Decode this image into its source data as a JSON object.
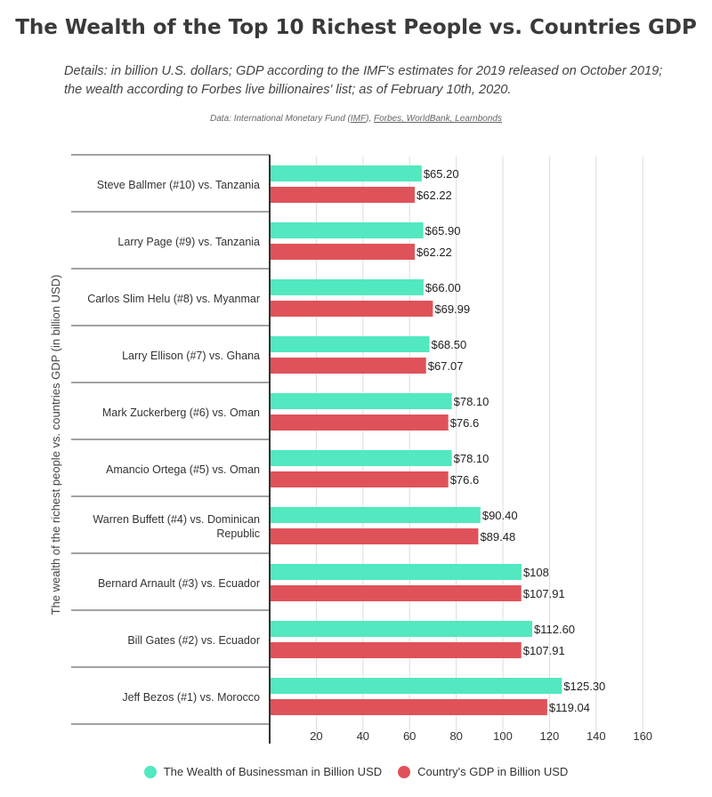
{
  "header": {
    "title": "The Wealth of the Top 10 Richest People vs. Countries GDP",
    "subtitle": "Details: in billion U.S. dollars; GDP according to the IMF's estimates for 2019 released on October 2019; the wealth according to Forbes live billionaires' list; as of February 10th, 2020.",
    "source_prefix": "Data: International Monetary Fund (",
    "source_imf": "IMF",
    "source_mid": "), ",
    "source_links": "Forbes, WorldBank, Learnbonds"
  },
  "colors": {
    "wealth": "#52e8c0",
    "gdp": "#e0525a",
    "axis": "#333333",
    "grid": "#dddddd"
  },
  "chart_data": {
    "type": "bar",
    "orientation": "horizontal",
    "ylabel": "The wealth of the richest people vs. countries GDP (in billion USD)",
    "xlim": [
      0,
      165
    ],
    "xticks": [
      20,
      40,
      60,
      80,
      100,
      120,
      140,
      160
    ],
    "grid": true,
    "legend_position": "bottom",
    "categories": [
      [
        "Steve Ballmer (#10) vs. Tanzania"
      ],
      [
        "Larry Page (#9) vs. Tanzania"
      ],
      [
        "Carlos Slim Helu (#8) vs. Myanmar"
      ],
      [
        "Larry Ellison (#7) vs. Ghana"
      ],
      [
        "Mark Zuckerberg (#6) vs. Oman"
      ],
      [
        "Amancio Ortega (#5) vs. Oman"
      ],
      [
        "Warren Buffett (#4) vs. Dominican",
        "Republic"
      ],
      [
        "Bernard Arnault (#3) vs. Ecuador"
      ],
      [
        "Bill Gates (#2) vs. Ecuador"
      ],
      [
        "Jeff Bezos (#1) vs. Morocco"
      ]
    ],
    "series": [
      {
        "name": "The Wealth of Businessman in Billion USD",
        "values": [
          65.2,
          65.9,
          66.0,
          68.5,
          78.1,
          78.1,
          90.4,
          108,
          112.6,
          125.3
        ],
        "labels": [
          "$65.20",
          "$65.90",
          "$66.00",
          "$68.50",
          "$78.10",
          "$78.10",
          "$90.40",
          "$108",
          "$112.60",
          "$125.30"
        ]
      },
      {
        "name": "Country's GDP in Billion USD",
        "values": [
          62.22,
          62.22,
          69.99,
          67.07,
          76.6,
          76.6,
          89.48,
          107.91,
          107.91,
          119.04
        ],
        "labels": [
          "$62.22",
          "$62.22",
          "$69.99",
          "$67.07",
          "$76.6",
          "$76.6",
          "$89.48",
          "$107.91",
          "$107.91",
          "$119.04"
        ]
      }
    ]
  }
}
